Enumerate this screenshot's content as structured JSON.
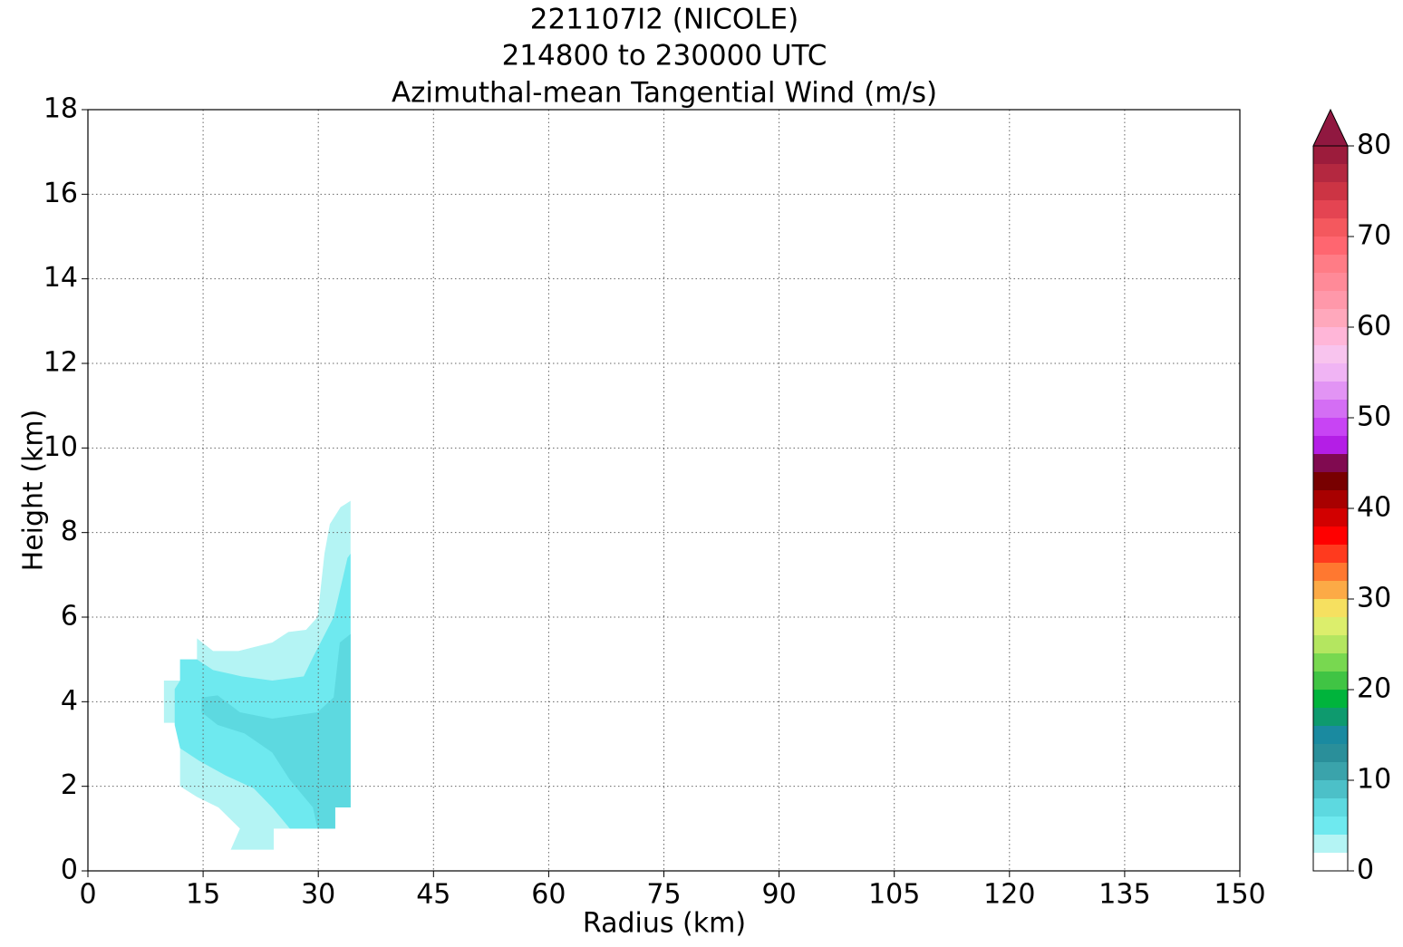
{
  "chart_data": {
    "type": "contourf",
    "title": [
      "221107I2 (NICOLE)",
      "214800 to 230000 UTC",
      "Azimuthal-mean Tangential Wind (m/s)"
    ],
    "xlabel": "Radius (km)",
    "ylabel": "Height (km)",
    "xlim": [
      0,
      150
    ],
    "ylim": [
      0,
      18
    ],
    "xticks": [
      0,
      15,
      30,
      45,
      60,
      75,
      90,
      105,
      120,
      135,
      150
    ],
    "yticks": [
      0,
      2,
      4,
      6,
      8,
      10,
      12,
      14,
      16,
      18
    ],
    "grid": true,
    "levels": [
      0,
      2,
      4,
      6,
      8,
      10,
      12,
      14,
      16,
      18,
      20,
      22,
      24,
      26,
      28,
      30,
      32,
      34,
      36,
      38,
      40,
      42,
      44,
      46,
      48,
      50,
      52,
      54,
      56,
      58,
      60,
      62,
      64,
      66,
      68,
      70,
      72,
      74,
      76,
      78,
      80
    ],
    "colors": [
      "#ffffff",
      "#b4f4f4",
      "#6ee9ef",
      "#5dd9e0",
      "#4cc0c8",
      "#3aa3ab",
      "#2a8f9a",
      "#1a8aa0",
      "#0e9a6e",
      "#00b43c",
      "#40c444",
      "#78d850",
      "#b4e660",
      "#dcee6c",
      "#f6e060",
      "#fcaa46",
      "#ff7830",
      "#ff3a1e",
      "#ff0000",
      "#d20000",
      "#a80000",
      "#780000",
      "#800a50",
      "#b41ee6",
      "#c844f4",
      "#d46ef4",
      "#e294f4",
      "#f0b4f4",
      "#f8c4ee",
      "#ffb6d8",
      "#ffa8bc",
      "#ff98aa",
      "#ff8a98",
      "#ff7c86",
      "#ff6670",
      "#f4585e",
      "#e44452",
      "#cc3444",
      "#b42840",
      "#9c1c3c"
    ],
    "extend_color": "#901840",
    "colorbar_ticks": [
      0,
      10,
      20,
      30,
      40,
      50,
      60,
      70,
      80
    ],
    "contours": [
      {
        "level": 2,
        "points": [
          [
            14.2,
            5.5
          ],
          [
            16.3,
            5.2
          ],
          [
            19.6,
            5.2
          ],
          [
            24,
            5.4
          ],
          [
            26.1,
            5.65
          ],
          [
            28.4,
            5.7
          ],
          [
            29.9,
            6
          ],
          [
            30.8,
            7.5
          ],
          [
            31.5,
            8.2
          ],
          [
            32.9,
            8.6
          ],
          [
            34.2,
            8.75
          ],
          [
            34.2,
            1.5
          ],
          [
            32.2,
            1.5
          ],
          [
            32.2,
            1.0
          ],
          [
            24.2,
            1.0
          ],
          [
            24.2,
            0.5
          ],
          [
            18.6,
            0.5
          ],
          [
            19.8,
            1.0
          ],
          [
            17,
            1.5
          ],
          [
            14.2,
            1.75
          ],
          [
            12,
            2
          ],
          [
            12,
            3
          ],
          [
            11.5,
            3.5
          ],
          [
            9.9,
            3.5
          ],
          [
            9.9,
            4.5
          ],
          [
            12,
            4.5
          ],
          [
            12,
            5
          ],
          [
            14.2,
            5
          ]
        ]
      },
      {
        "level": 4,
        "points": [
          [
            12,
            5
          ],
          [
            14.2,
            5
          ],
          [
            16.3,
            4.75
          ],
          [
            20,
            4.6
          ],
          [
            24,
            4.5
          ],
          [
            28.1,
            4.6
          ],
          [
            29.3,
            5.05
          ],
          [
            32,
            6
          ],
          [
            33.8,
            7.4
          ],
          [
            34.2,
            7.5
          ],
          [
            34.2,
            1.5
          ],
          [
            32.2,
            1.5
          ],
          [
            32.2,
            1.0
          ],
          [
            26.3,
            1.0
          ],
          [
            24,
            1.5
          ],
          [
            21.6,
            1.95
          ],
          [
            18,
            2.25
          ],
          [
            14.5,
            2.6
          ],
          [
            12,
            2.9
          ],
          [
            11.3,
            3.45
          ],
          [
            11.3,
            4.3
          ],
          [
            12,
            4.5
          ]
        ]
      },
      {
        "level": 6,
        "points": [
          [
            14.8,
            4.1
          ],
          [
            16.9,
            4.15
          ],
          [
            19.8,
            3.75
          ],
          [
            24,
            3.6
          ],
          [
            29.9,
            3.75
          ],
          [
            32,
            4.1
          ],
          [
            32.8,
            5.4
          ],
          [
            34.2,
            5.6
          ],
          [
            34.2,
            1.5
          ],
          [
            32.2,
            1.5
          ],
          [
            32.2,
            1.0
          ],
          [
            29.9,
            1.0
          ],
          [
            29.3,
            1.5
          ],
          [
            26.3,
            2.15
          ],
          [
            24,
            2.8
          ],
          [
            20.4,
            3.25
          ],
          [
            16.9,
            3.45
          ],
          [
            14.8,
            3.75
          ]
        ]
      }
    ]
  }
}
